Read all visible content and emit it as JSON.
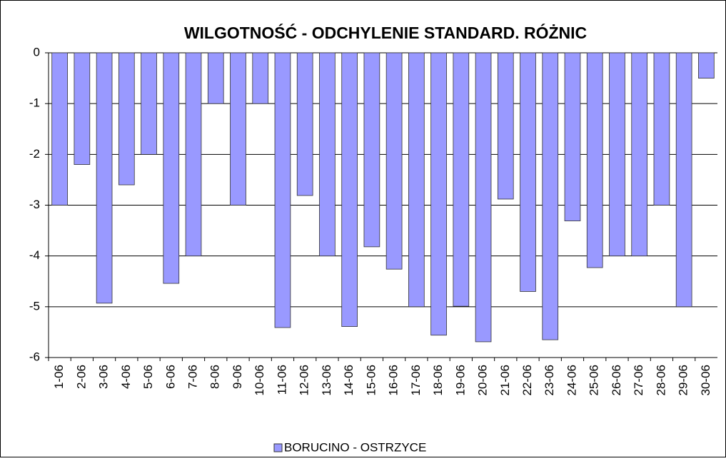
{
  "chart_data": {
    "type": "bar",
    "title": "WILGOTNOŚĆ - ODCHYLENIE STANDARD. RÓŻNIC",
    "categories": [
      "1-06",
      "2-06",
      "3-06",
      "4-06",
      "5-06",
      "6-06",
      "7-06",
      "8-06",
      "9-06",
      "10-06",
      "11-06",
      "12-06",
      "13-06",
      "14-06",
      "15-06",
      "16-06",
      "17-06",
      "18-06",
      "19-06",
      "20-06",
      "21-06",
      "22-06",
      "23-06",
      "24-06",
      "25-06",
      "26-06",
      "27-06",
      "28-06",
      "29-06",
      "30-06"
    ],
    "series": [
      {
        "name": "BORUCINO - OSTRZYCE",
        "color": "#9999ff",
        "values": [
          -3.0,
          -2.2,
          -4.93,
          -2.6,
          -2.0,
          -4.54,
          -4.0,
          -1.0,
          -3.0,
          -1.0,
          -5.41,
          -2.81,
          -4.0,
          -5.39,
          -3.82,
          -4.26,
          -5.0,
          -5.56,
          -4.99,
          -5.69,
          -2.88,
          -4.7,
          -5.65,
          -3.31,
          -4.23,
          -4.0,
          -4.0,
          -3.0,
          -5.0,
          -0.5
        ]
      }
    ],
    "ylim": [
      -6,
      0
    ],
    "yticks": [
      -6,
      -5,
      -4,
      -3,
      -2,
      -1,
      0
    ],
    "grid": true,
    "legend": "bottom"
  }
}
